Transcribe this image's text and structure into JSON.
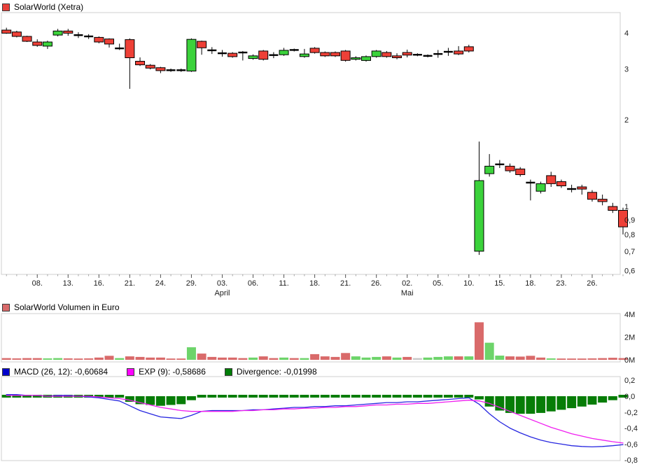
{
  "header": {
    "title": "SolarWorld (Xetra)",
    "swatch_color": "#e8403a"
  },
  "volume_header": {
    "title": "SolarWorld Volumen in Euro",
    "swatch_color": "#d96a6a"
  },
  "macd_header": {
    "items": [
      {
        "label": "MACD (26, 12): -0,60684",
        "swatch_color": "#0000cc"
      },
      {
        "label": "EXP (9): -0,58686",
        "swatch_color": "#ff00ff"
      },
      {
        "label": "Divergence: -0,01998",
        "swatch_color": "#007d07"
      }
    ]
  },
  "chart_data": [
    {
      "type": "candlestick",
      "title": "SolarWorld (Xetra)",
      "y_scale": "log",
      "ylim": [
        0.55,
        4.35
      ],
      "y_ticks": [
        {
          "value": 4,
          "label": "4"
        },
        {
          "value": 3,
          "label": "3"
        },
        {
          "value": 2,
          "label": "2"
        },
        {
          "value": 1,
          "label": "1"
        },
        {
          "value": 0.9,
          "label": "0,9"
        },
        {
          "value": 0.8,
          "label": "0,8"
        },
        {
          "value": 0.7,
          "label": "0,7"
        },
        {
          "value": 0.6,
          "label": "0,6"
        }
      ],
      "x_ticks": {
        "start_index": 3,
        "every": 3,
        "labels": [
          "08.",
          "13.",
          "16.",
          "21.",
          "24.",
          "29.",
          "03.",
          "06.",
          "11.",
          "18.",
          "21.",
          "26.",
          "02.",
          "05.",
          "10.",
          "15.",
          "18.",
          "23.",
          "26."
        ]
      },
      "month_labels": [
        {
          "index": 21,
          "label": "April"
        },
        {
          "index": 39,
          "label": "Mai"
        }
      ],
      "up_color": "#3bd23b",
      "down_color": "#ee4037",
      "neutral_color": "#000000",
      "candles_ohlc": [
        [
          4.09,
          4.17,
          3.97,
          3.99
        ],
        [
          4.03,
          4.07,
          3.86,
          3.89
        ],
        [
          3.89,
          3.91,
          3.72,
          3.74
        ],
        [
          3.72,
          3.8,
          3.58,
          3.62
        ],
        [
          3.6,
          3.76,
          3.52,
          3.72
        ],
        [
          3.93,
          4.13,
          3.89,
          4.06
        ],
        [
          4.06,
          4.13,
          3.91,
          3.99
        ],
        [
          3.93,
          4.02,
          3.84,
          3.93
        ],
        [
          3.89,
          3.96,
          3.81,
          3.89
        ],
        [
          3.86,
          3.89,
          3.68,
          3.72
        ],
        [
          3.81,
          3.83,
          3.56,
          3.66
        ],
        [
          3.52,
          3.67,
          3.49,
          3.55
        ],
        [
          3.79,
          3.83,
          2.56,
          3.28
        ],
        [
          3.19,
          3.29,
          3.07,
          3.1
        ],
        [
          3.09,
          3.12,
          2.99,
          3.02
        ],
        [
          3.03,
          3.05,
          2.9,
          2.96
        ],
        [
          2.97,
          3.01,
          2.93,
          2.97
        ],
        [
          2.97,
          3.01,
          2.93,
          2.97
        ],
        [
          2.95,
          3.83,
          2.93,
          3.8
        ],
        [
          3.74,
          3.76,
          3.36,
          3.55
        ],
        [
          3.48,
          3.57,
          3.38,
          3.48
        ],
        [
          3.4,
          3.49,
          3.31,
          3.4
        ],
        [
          3.4,
          3.43,
          3.28,
          3.31
        ],
        [
          3.42,
          3.46,
          3.21,
          3.42
        ],
        [
          3.26,
          3.37,
          3.23,
          3.33
        ],
        [
          3.46,
          3.49,
          3.21,
          3.24
        ],
        [
          3.35,
          3.43,
          3.27,
          3.35
        ],
        [
          3.36,
          3.55,
          3.33,
          3.48
        ],
        [
          3.49,
          3.53,
          3.45,
          3.49
        ],
        [
          3.31,
          3.52,
          3.28,
          3.38
        ],
        [
          3.54,
          3.57,
          3.39,
          3.42
        ],
        [
          3.42,
          3.45,
          3.3,
          3.33
        ],
        [
          3.42,
          3.45,
          3.3,
          3.33
        ],
        [
          3.46,
          3.49,
          3.18,
          3.21
        ],
        [
          3.24,
          3.32,
          3.21,
          3.28
        ],
        [
          3.21,
          3.34,
          3.18,
          3.31
        ],
        [
          3.31,
          3.49,
          3.28,
          3.46
        ],
        [
          3.42,
          3.46,
          3.28,
          3.31
        ],
        [
          3.33,
          3.4,
          3.24,
          3.28
        ],
        [
          3.42,
          3.5,
          3.29,
          3.35
        ],
        [
          3.36,
          3.4,
          3.32,
          3.36
        ],
        [
          3.33,
          3.37,
          3.29,
          3.33
        ],
        [
          3.38,
          3.49,
          3.28,
          3.38
        ],
        [
          3.44,
          3.55,
          3.33,
          3.44
        ],
        [
          3.46,
          3.6,
          3.35,
          3.38
        ],
        [
          3.58,
          3.64,
          3.42,
          3.46
        ],
        [
          0.7,
          1.68,
          0.68,
          1.23
        ],
        [
          1.3,
          1.52,
          1.27,
          1.38
        ],
        [
          1.4,
          1.45,
          1.36,
          1.4
        ],
        [
          1.38,
          1.41,
          1.31,
          1.33
        ],
        [
          1.35,
          1.37,
          1.27,
          1.29
        ],
        [
          1.21,
          1.24,
          1.05,
          1.21
        ],
        [
          1.13,
          1.22,
          1.11,
          1.2
        ],
        [
          1.28,
          1.32,
          1.17,
          1.2
        ],
        [
          1.22,
          1.24,
          1.16,
          1.18
        ],
        [
          1.15,
          1.19,
          1.12,
          1.15
        ],
        [
          1.17,
          1.19,
          1.1,
          1.15
        ],
        [
          1.12,
          1.14,
          1.04,
          1.06
        ],
        [
          1.06,
          1.1,
          1.01,
          1.04
        ],
        [
          1.0,
          1.03,
          0.95,
          0.97
        ],
        [
          0.97,
          0.99,
          0.8,
          0.85
        ]
      ]
    },
    {
      "type": "bar",
      "title": "SolarWorld Volumen in Euro",
      "unit": "millions EUR",
      "ylim": [
        0,
        4
      ],
      "y_ticks": [
        {
          "value": 4,
          "label": "4M"
        },
        {
          "value": 2,
          "label": "2M"
        },
        {
          "value": 0,
          "label": "0M"
        }
      ],
      "color_map": {
        "r": "#d96a6a",
        "g": "#6dd46a",
        "x": "#c8c8c8"
      },
      "values": [
        0.15,
        0.12,
        0.15,
        0.15,
        0.12,
        0.15,
        0.12,
        0.1,
        0.12,
        0.2,
        0.35,
        0.15,
        0.3,
        0.25,
        0.2,
        0.2,
        0.1,
        0.1,
        1.1,
        0.55,
        0.25,
        0.2,
        0.2,
        0.15,
        0.2,
        0.3,
        0.15,
        0.2,
        0.15,
        0.15,
        0.5,
        0.3,
        0.25,
        0.6,
        0.3,
        0.2,
        0.25,
        0.3,
        0.2,
        0.25,
        0.15,
        0.2,
        0.25,
        0.3,
        0.3,
        0.3,
        3.3,
        1.5,
        0.37,
        0.3,
        0.28,
        0.35,
        0.2,
        0.12,
        0.08,
        0.1,
        0.1,
        0.12,
        0.15,
        0.18,
        0.15
      ],
      "bar_colors": [
        "r",
        "r",
        "r",
        "r",
        "g",
        "g",
        "r",
        "r",
        "r",
        "r",
        "r",
        "g",
        "r",
        "r",
        "r",
        "r",
        "r",
        "r",
        "g",
        "r",
        "r",
        "r",
        "r",
        "r",
        "g",
        "r",
        "r",
        "g",
        "r",
        "g",
        "r",
        "r",
        "r",
        "r",
        "g",
        "g",
        "g",
        "r",
        "g",
        "r",
        "x",
        "g",
        "g",
        "g",
        "r",
        "g",
        "r",
        "g",
        "g",
        "r",
        "r",
        "r",
        "r",
        "g",
        "r",
        "r",
        "r",
        "r",
        "r",
        "r",
        "r"
      ]
    },
    {
      "type": "line+bar",
      "title": "MACD",
      "ylim": [
        0.25,
        -0.85
      ],
      "y_ticks": [
        {
          "value": 0.2,
          "label": "0,2"
        },
        {
          "value": 0.0,
          "label": "0,0"
        },
        {
          "value": -0.2,
          "label": "-0,2"
        },
        {
          "value": -0.4,
          "label": "-0,4"
        },
        {
          "value": -0.6,
          "label": "-0,6"
        },
        {
          "value": -0.8,
          "label": "-0,8"
        }
      ],
      "series": [
        {
          "name": "MACD (26, 12)",
          "style": "line",
          "color": "#2727e0",
          "current": -0.60684,
          "values": [
            0.02,
            0.02,
            0.01,
            0.01,
            0.0,
            0.01,
            0.01,
            0.0,
            -0.01,
            -0.02,
            -0.04,
            -0.06,
            -0.12,
            -0.18,
            -0.22,
            -0.26,
            -0.27,
            -0.28,
            -0.24,
            -0.19,
            -0.18,
            -0.18,
            -0.18,
            -0.18,
            -0.17,
            -0.17,
            -0.16,
            -0.15,
            -0.14,
            -0.14,
            -0.13,
            -0.13,
            -0.12,
            -0.12,
            -0.11,
            -0.1,
            -0.09,
            -0.08,
            -0.08,
            -0.07,
            -0.07,
            -0.06,
            -0.05,
            -0.04,
            -0.03,
            -0.02,
            -0.1,
            -0.22,
            -0.32,
            -0.4,
            -0.46,
            -0.51,
            -0.55,
            -0.58,
            -0.6,
            -0.62,
            -0.63,
            -0.635,
            -0.63,
            -0.62,
            -0.607
          ]
        },
        {
          "name": "EXP (9)",
          "style": "line",
          "color": "#f01ef0",
          "current": -0.58686,
          "values": [
            0.01,
            0.01,
            0.01,
            0.01,
            0.0,
            0.0,
            0.0,
            0.0,
            0.0,
            -0.01,
            -0.02,
            -0.03,
            -0.05,
            -0.08,
            -0.11,
            -0.14,
            -0.16,
            -0.18,
            -0.19,
            -0.19,
            -0.19,
            -0.19,
            -0.19,
            -0.18,
            -0.18,
            -0.17,
            -0.17,
            -0.16,
            -0.16,
            -0.15,
            -0.15,
            -0.14,
            -0.14,
            -0.13,
            -0.13,
            -0.12,
            -0.11,
            -0.11,
            -0.1,
            -0.1,
            -0.09,
            -0.09,
            -0.08,
            -0.07,
            -0.06,
            -0.05,
            -0.06,
            -0.09,
            -0.14,
            -0.19,
            -0.24,
            -0.29,
            -0.34,
            -0.39,
            -0.43,
            -0.47,
            -0.5,
            -0.53,
            -0.55,
            -0.57,
            -0.587
          ]
        },
        {
          "name": "Divergence",
          "style": "bar",
          "color": "#077d07",
          "current": -0.01998,
          "values": [
            0.01,
            0.01,
            0.0,
            0.0,
            0.0,
            0.01,
            0.01,
            0.0,
            -0.01,
            -0.01,
            -0.02,
            -0.03,
            -0.07,
            -0.1,
            -0.11,
            -0.12,
            -0.11,
            -0.1,
            -0.05,
            0.0,
            0.01,
            0.01,
            0.01,
            0.0,
            0.01,
            0.0,
            0.01,
            0.01,
            0.02,
            0.01,
            0.02,
            0.01,
            0.02,
            0.01,
            0.02,
            0.02,
            0.02,
            0.03,
            0.02,
            0.03,
            0.02,
            0.03,
            0.03,
            0.03,
            0.03,
            0.03,
            -0.04,
            -0.13,
            -0.18,
            -0.21,
            -0.22,
            -0.22,
            -0.21,
            -0.19,
            -0.17,
            -0.15,
            -0.13,
            -0.105,
            -0.08,
            -0.05,
            -0.02
          ]
        }
      ]
    }
  ]
}
